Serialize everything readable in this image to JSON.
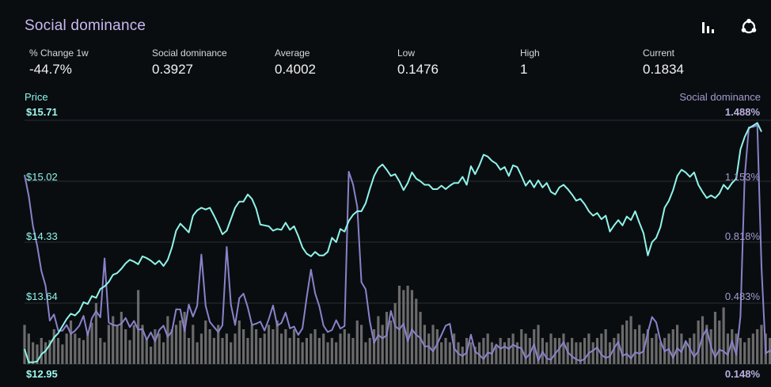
{
  "header": {
    "title": "Social dominance",
    "icons": [
      "bar-chart-icon",
      "share-network-icon"
    ]
  },
  "stats": [
    {
      "label": "% Change 1w",
      "value": "-44.7%"
    },
    {
      "label": "Social dominance",
      "value": "0.3927"
    },
    {
      "label": "Average",
      "value": "0.4002"
    },
    {
      "label": "Low",
      "value": "0.1476"
    },
    {
      "label": "High",
      "value": "1"
    },
    {
      "label": "Current",
      "value": "0.1834"
    }
  ],
  "colors": {
    "price": "#8ff5ea",
    "social": "#8a82c9",
    "volume": "#6b6b6b",
    "grid": "#2a2e33"
  },
  "chart_data": {
    "type": "line",
    "left_axis": {
      "label": "Price",
      "ticks": [
        "$15.71",
        "$15.02",
        "$14.33",
        "$13.64",
        "$12.95"
      ],
      "range": [
        12.95,
        15.71
      ]
    },
    "right_axis": {
      "label": "Social dominance",
      "ticks": [
        "1.488%",
        "1.153%",
        "0.818%",
        "0.483%",
        "0.148%"
      ],
      "range": [
        0.148,
        1.488
      ]
    },
    "series": [
      {
        "name": "Price",
        "axis": "left",
        "values": [
          13.12,
          12.97,
          12.97,
          12.98,
          13.06,
          13.1,
          13.17,
          13.25,
          13.3,
          13.38,
          13.46,
          13.52,
          13.5,
          13.55,
          13.65,
          13.63,
          13.72,
          13.7,
          13.8,
          13.83,
          13.88,
          13.96,
          13.98,
          14.03,
          14.09,
          14.13,
          14.11,
          14.08,
          14.17,
          14.15,
          14.12,
          14.08,
          14.12,
          14.06,
          14.13,
          14.27,
          14.46,
          14.54,
          14.49,
          14.44,
          14.63,
          14.69,
          14.72,
          14.7,
          14.72,
          14.63,
          14.53,
          14.42,
          14.46,
          14.59,
          14.72,
          14.79,
          14.79,
          14.87,
          14.82,
          14.71,
          14.53,
          14.52,
          14.51,
          14.46,
          14.48,
          14.47,
          14.55,
          14.47,
          14.51,
          14.4,
          14.27,
          14.2,
          14.17,
          14.22,
          14.18,
          14.18,
          14.22,
          14.38,
          14.33,
          14.48,
          14.45,
          14.57,
          14.64,
          14.68,
          14.68,
          14.77,
          14.93,
          15.08,
          15.17,
          15.21,
          15.15,
          15.08,
          15.1,
          15.02,
          14.92,
          15.0,
          15.12,
          15.05,
          15.02,
          14.98,
          14.98,
          14.93,
          14.93,
          14.97,
          14.93,
          14.97,
          15.0,
          15.0,
          15.07,
          14.98,
          15.19,
          15.1,
          15.2,
          15.32,
          15.3,
          15.25,
          15.22,
          15.15,
          15.18,
          15.08,
          15.2,
          15.18,
          15.08,
          14.97,
          15.03,
          14.95,
          15.03,
          14.95,
          15.0,
          14.9,
          14.87,
          14.95,
          14.98,
          14.93,
          14.87,
          14.8,
          14.82,
          14.76,
          14.68,
          14.63,
          14.66,
          14.59,
          14.63,
          14.45,
          14.52,
          14.58,
          14.52,
          14.62,
          14.58,
          14.68,
          14.55,
          14.43,
          14.18,
          14.33,
          14.38,
          14.5,
          14.72,
          14.8,
          14.92,
          15.08,
          15.15,
          15.12,
          15.07,
          15.12,
          14.98,
          14.9,
          14.83,
          14.86,
          14.83,
          14.88,
          14.98,
          14.93,
          15.0,
          15.05,
          15.38,
          15.52,
          15.62,
          15.65,
          15.68,
          15.58
        ]
      },
      {
        "name": "Social dominance",
        "axis": "right",
        "values": [
          1.188,
          1.073,
          0.907,
          0.798,
          0.659,
          0.578,
          0.387,
          0.421,
          0.331,
          0.331,
          0.363,
          0.314,
          0.331,
          0.359,
          0.413,
          0.306,
          0.4,
          0.439,
          0.405,
          0.729,
          0.376,
          0.363,
          0.359,
          0.37,
          0.401,
          0.351,
          0.385,
          0.336,
          0.341,
          0.281,
          0.322,
          0.272,
          0.335,
          0.359,
          0.298,
          0.328,
          0.449,
          0.448,
          0.328,
          0.475,
          0.409,
          0.468,
          0.75,
          0.468,
          0.38,
          0.351,
          0.324,
          0.361,
          0.792,
          0.475,
          0.363,
          0.51,
          0.535,
          0.46,
          0.363,
          0.37,
          0.381,
          0.332,
          0.395,
          0.47,
          0.359,
          0.374,
          0.431,
          0.344,
          0.354,
          0.308,
          0.344,
          0.512,
          0.667,
          0.537,
          0.466,
          0.359,
          0.324,
          0.335,
          0.389,
          0.343,
          0.357,
          1.205,
          1.136,
          1.013,
          0.598,
          0.559,
          0.383,
          0.264,
          0.308,
          0.289,
          0.306,
          0.44,
          0.356,
          0.338,
          0.37,
          0.273,
          0.338,
          0.308,
          0.291,
          0.245,
          0.246,
          0.217,
          0.259,
          0.308,
          0.359,
          0.369,
          0.235,
          0.205,
          0.193,
          0.211,
          0.31,
          0.217,
          0.198,
          0.175,
          0.211,
          0.205,
          0.255,
          0.232,
          0.245,
          0.231,
          0.255,
          0.241,
          0.235,
          0.179,
          0.205,
          0.257,
          0.166,
          0.216,
          0.179,
          0.172,
          0.205,
          0.233,
          0.269,
          0.213,
          0.19,
          0.174,
          0.165,
          0.176,
          0.209,
          0.222,
          0.24,
          0.198,
          0.182,
          0.19,
          0.236,
          0.27,
          0.193,
          0.205,
          0.178,
          0.213,
          0.205,
          0.218,
          0.321,
          0.407,
          0.377,
          0.276,
          0.218,
          0.231,
          0.182,
          0.236,
          0.213,
          0.275,
          0.233,
          0.188,
          0.218,
          0.3,
          0.34,
          0.243,
          0.185,
          0.227,
          0.218,
          0.198,
          0.275,
          0.198,
          0.41,
          1.172,
          1.449,
          1.452,
          1.461,
          0.68,
          0.207,
          0.222,
          0.198,
          0.236,
          0.176
        ]
      },
      {
        "name": "Volume",
        "axis": "none",
        "values": [
          18,
          14,
          10,
          9,
          12,
          10,
          11,
          16,
          12,
          9,
          14,
          20,
          14,
          12,
          11,
          15,
          19,
          28,
          12,
          10,
          18,
          22,
          18,
          24,
          16,
          11,
          18,
          34,
          18,
          12,
          8,
          16,
          14,
          10,
          22,
          16,
          18,
          20,
          24,
          12,
          18,
          10,
          14,
          20,
          16,
          12,
          18,
          12,
          14,
          10,
          14,
          20,
          16,
          12,
          18,
          16,
          12,
          14,
          18,
          16,
          20,
          14,
          16,
          12,
          16,
          12,
          10,
          12,
          14,
          16,
          12,
          14,
          10,
          12,
          10,
          14,
          16,
          14,
          12,
          20,
          18,
          10,
          12,
          16,
          22,
          18,
          24,
          20,
          28,
          36,
          34,
          36,
          34,
          30,
          24,
          18,
          14,
          18,
          16,
          10,
          12,
          10,
          14,
          10,
          8,
          12,
          10,
          8,
          10,
          12,
          14,
          10,
          8,
          12,
          10,
          12,
          14,
          10,
          16,
          14,
          12,
          16,
          18,
          12,
          10,
          14,
          12,
          12,
          14,
          10,
          12,
          10,
          10,
          12,
          14,
          10,
          12,
          14,
          16,
          10,
          12,
          14,
          18,
          20,
          22,
          16,
          18,
          14,
          16,
          12,
          14,
          10,
          12,
          14,
          16,
          18,
          14,
          10,
          12,
          14,
          20,
          22,
          18,
          16,
          24,
          20,
          26,
          14,
          16,
          14,
          12,
          10,
          12,
          14,
          16,
          18,
          14,
          12,
          10,
          12,
          8
        ]
      }
    ],
    "grid": true
  }
}
